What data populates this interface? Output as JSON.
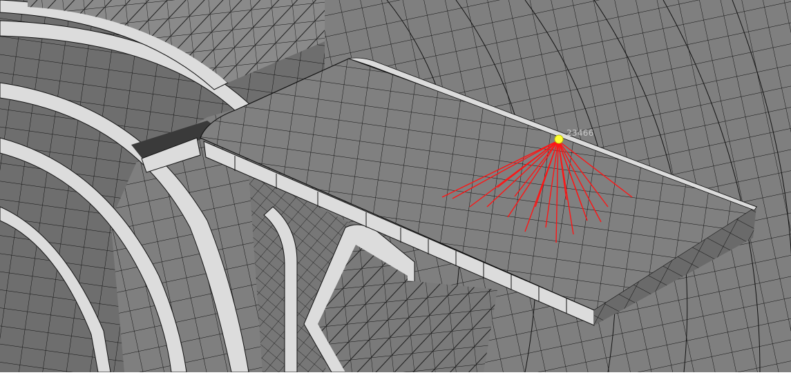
{
  "viewport": {
    "node_label": "23466",
    "colors": {
      "background": "#ffffff",
      "shell_face": "#7f7f7f",
      "shell_face_dark": "#6e6e6e",
      "flange_face": "#dcdcdc",
      "mesh_line": "#111111",
      "rbe_spider": "#ff1414",
      "node_marker": "#ffff33"
    }
  }
}
